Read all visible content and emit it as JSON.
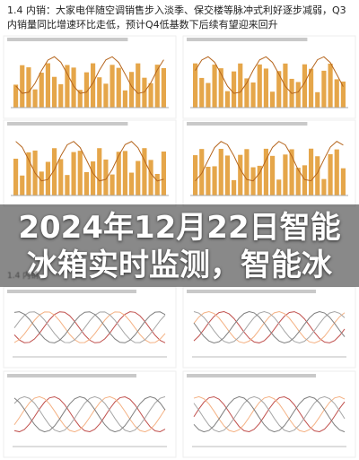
{
  "header": {
    "title": "1.4 内销：大家电伴随空调销售步入淡季、保交楼等脉冲式利好逐步减弱，Q3内销量同比增速环比走低，预计Q4低基数下后续有望迎来回升"
  },
  "overlay": {
    "lines": [
      "2024年12月22日智能",
      "冰箱实时监测，智能冰"
    ]
  },
  "lower": {
    "title": "1.4 内销"
  }
}
